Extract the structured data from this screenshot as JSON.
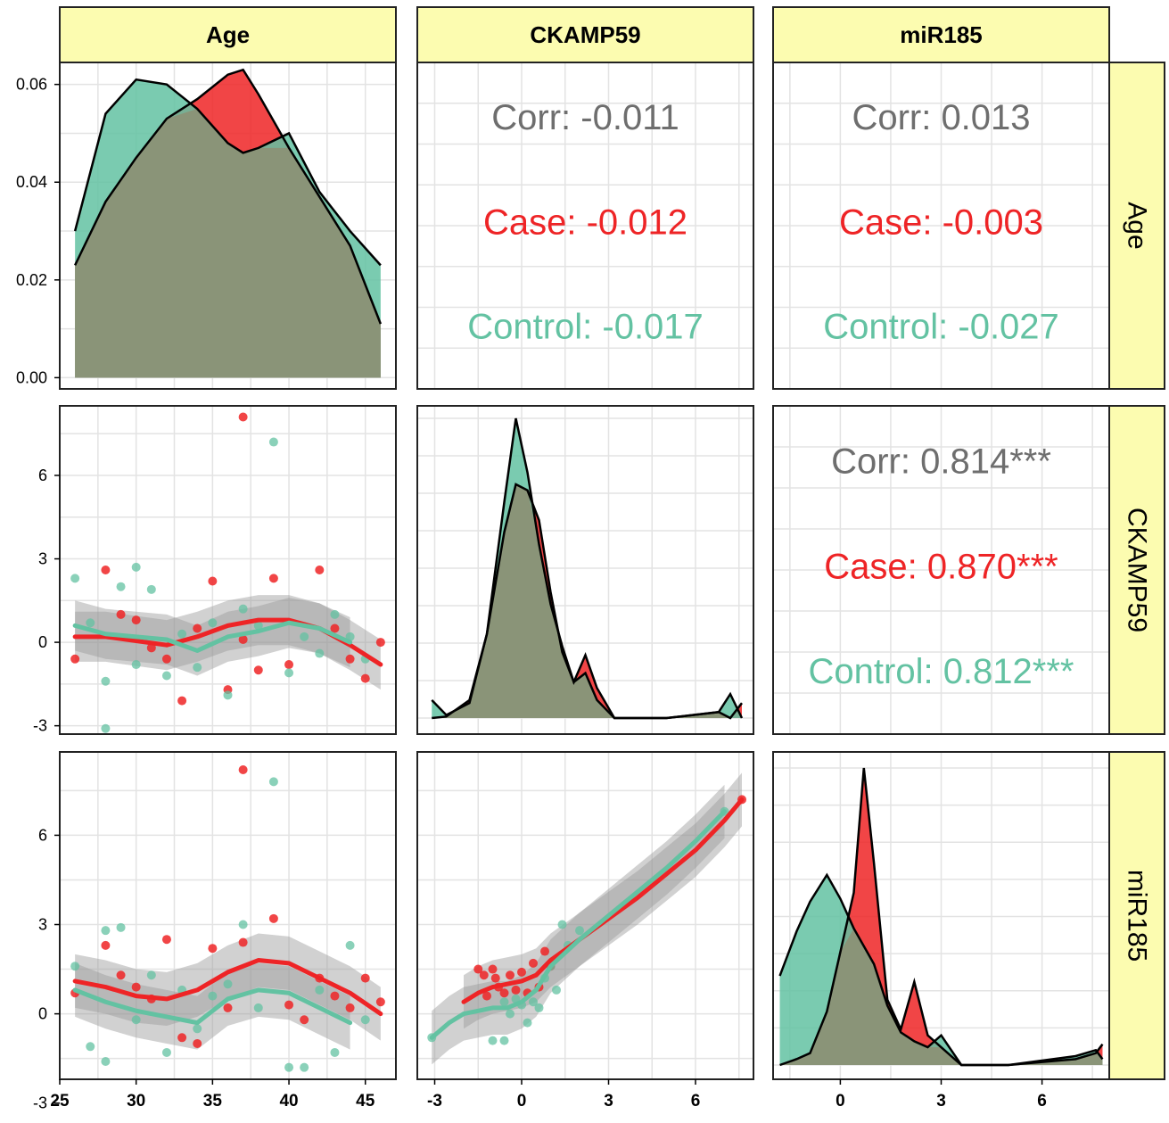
{
  "colors": {
    "case": "#ee2426",
    "control": "#63c2a2",
    "overall": "#6e6e6e",
    "strip_fill": "#fcfcb0",
    "overlap": "#8a9478",
    "smooth_ribbon": "#9a9a9a",
    "grid": "#e3e3e3",
    "panel_border": "#222222"
  },
  "chart_data": {
    "type": "pairs",
    "variables": [
      "Age",
      "CKAMP59",
      "miR185"
    ],
    "groups": [
      "Case",
      "Control"
    ],
    "grid": true,
    "axis_ticks": {
      "age_density_y": [
        "0.00",
        "0.02",
        "0.04",
        "0.06"
      ],
      "age_x": [
        "25",
        "30",
        "35",
        "40",
        "45"
      ],
      "ckamp59_y": [
        "-3",
        "0",
        "3",
        "6"
      ],
      "ckamp59_x": [
        "-3",
        "0",
        "3",
        "6"
      ],
      "mir185_y": [
        "-3",
        "0",
        "3",
        "6"
      ],
      "mir185_x": [
        "0",
        "3",
        "6"
      ]
    },
    "correlations": [
      {
        "panel": "Age vs CKAMP59",
        "overall": "Corr: -0.011",
        "case": "Case: -0.012",
        "control": "Control: -0.017"
      },
      {
        "panel": "Age vs miR185",
        "overall": "Corr: 0.013",
        "case": "Case: -0.003",
        "control": "Control: -0.027"
      },
      {
        "panel": "CKAMP59 vs miR185",
        "overall": "Corr: 0.814***",
        "case": "Case: 0.870***",
        "control": "Control: 0.812***"
      }
    ],
    "density_age": {
      "x": [
        26,
        28,
        30,
        32,
        34,
        36,
        37,
        38,
        40,
        42,
        44,
        46
      ],
      "case": [
        0.023,
        0.036,
        0.045,
        0.053,
        0.057,
        0.062,
        0.063,
        0.058,
        0.047,
        0.037,
        0.027,
        0.011
      ],
      "control": [
        0.03,
        0.054,
        0.061,
        0.06,
        0.055,
        0.048,
        0.046,
        0.047,
        0.05,
        0.038,
        0.03,
        0.023
      ]
    },
    "density_ckamp59": {
      "x": [
        -3.1,
        -2.6,
        -1.8,
        -1.2,
        -0.6,
        -0.2,
        0.2,
        0.6,
        1.0,
        1.4,
        1.8,
        2.2,
        2.6,
        3.2,
        5.0,
        6.8,
        7.2,
        7.6
      ],
      "case": [
        0.0,
        0.005,
        0.06,
        0.28,
        0.62,
        0.78,
        0.76,
        0.66,
        0.42,
        0.22,
        0.12,
        0.21,
        0.1,
        0.0,
        0.0,
        0.02,
        0.0,
        0.05
      ],
      "control": [
        0.06,
        0.01,
        0.05,
        0.28,
        0.72,
        1.0,
        0.82,
        0.58,
        0.38,
        0.24,
        0.12,
        0.15,
        0.06,
        0.0,
        0.0,
        0.02,
        0.08,
        0.0
      ]
    },
    "density_mir185": {
      "x": [
        -1.8,
        -1.3,
        -0.9,
        -0.4,
        0.0,
        0.4,
        0.7,
        1.0,
        1.4,
        1.8,
        2.2,
        2.6,
        3.0,
        3.6,
        5.0,
        7.0,
        7.6,
        7.8
      ],
      "case": [
        0.0,
        0.02,
        0.04,
        0.18,
        0.38,
        0.58,
        1.0,
        0.68,
        0.22,
        0.12,
        0.28,
        0.1,
        0.06,
        0.0,
        0.0,
        0.02,
        0.04,
        0.07
      ],
      "control": [
        0.3,
        0.45,
        0.55,
        0.64,
        0.56,
        0.46,
        0.4,
        0.34,
        0.2,
        0.11,
        0.08,
        0.06,
        0.1,
        0.0,
        0.0,
        0.03,
        0.05,
        0.02
      ]
    },
    "scatter_age_ckamp59": {
      "case": [
        [
          26,
          -0.6
        ],
        [
          28,
          2.6
        ],
        [
          29,
          1.0
        ],
        [
          30,
          0.8
        ],
        [
          31,
          -0.2
        ],
        [
          32,
          -0.6
        ],
        [
          33,
          -2.1
        ],
        [
          34,
          0.5
        ],
        [
          35,
          2.2
        ],
        [
          36,
          -1.7
        ],
        [
          37,
          8.1
        ],
        [
          38,
          -1.0
        ],
        [
          39,
          2.3
        ],
        [
          40,
          -0.8
        ],
        [
          42,
          2.6
        ],
        [
          43,
          0.5
        ],
        [
          44,
          -0.6
        ],
        [
          45,
          -1.3
        ],
        [
          46,
          0.0
        ],
        [
          37,
          0.1
        ]
      ],
      "control": [
        [
          26,
          2.3
        ],
        [
          27,
          0.7
        ],
        [
          28,
          -1.4
        ],
        [
          28,
          -3.1
        ],
        [
          29,
          2.0
        ],
        [
          30,
          2.7
        ],
        [
          30,
          -0.8
        ],
        [
          31,
          1.9
        ],
        [
          32,
          -1.2
        ],
        [
          33,
          0.3
        ],
        [
          34,
          -0.9
        ],
        [
          35,
          0.7
        ],
        [
          36,
          -1.9
        ],
        [
          37,
          1.2
        ],
        [
          38,
          0.6
        ],
        [
          39,
          7.2
        ],
        [
          40,
          -1.1
        ],
        [
          41,
          0.2
        ],
        [
          42,
          -0.4
        ],
        [
          43,
          1.0
        ],
        [
          44,
          0.2
        ],
        [
          45,
          -0.6
        ]
      ]
    },
    "scatter_age_mir185": {
      "case": [
        [
          26,
          0.7
        ],
        [
          28,
          2.3
        ],
        [
          29,
          1.3
        ],
        [
          30,
          0.9
        ],
        [
          31,
          0.5
        ],
        [
          32,
          2.5
        ],
        [
          33,
          -0.8
        ],
        [
          34,
          -1.0
        ],
        [
          35,
          2.2
        ],
        [
          36,
          0.2
        ],
        [
          37,
          8.2
        ],
        [
          37,
          2.4
        ],
        [
          39,
          3.2
        ],
        [
          40,
          0.3
        ],
        [
          41,
          -0.2
        ],
        [
          42,
          1.2
        ],
        [
          43,
          0.6
        ],
        [
          44,
          0.2
        ],
        [
          45,
          1.2
        ],
        [
          46,
          0.4
        ]
      ],
      "control": [
        [
          26,
          1.6
        ],
        [
          27,
          -1.1
        ],
        [
          28,
          -1.6
        ],
        [
          28,
          2.8
        ],
        [
          29,
          2.9
        ],
        [
          30,
          -0.2
        ],
        [
          31,
          1.3
        ],
        [
          32,
          -1.3
        ],
        [
          33,
          0.8
        ],
        [
          34,
          -0.5
        ],
        [
          35,
          0.6
        ],
        [
          36,
          1.0
        ],
        [
          37,
          3.0
        ],
        [
          38,
          0.2
        ],
        [
          39,
          7.8
        ],
        [
          40,
          -1.8
        ],
        [
          41,
          -1.8
        ],
        [
          42,
          0.8
        ],
        [
          43,
          -1.3
        ],
        [
          44,
          2.3
        ],
        [
          45,
          -0.2
        ]
      ]
    },
    "scatter_ckamp59_mir185": {
      "case": [
        [
          -1.5,
          1.5
        ],
        [
          -1.3,
          1.3
        ],
        [
          -1.2,
          0.6
        ],
        [
          -1.0,
          1.5
        ],
        [
          -0.8,
          0.9
        ],
        [
          -0.6,
          0.7
        ],
        [
          -0.4,
          1.3
        ],
        [
          -0.2,
          0.8
        ],
        [
          0.0,
          1.4
        ],
        [
          0.2,
          0.7
        ],
        [
          0.4,
          1.7
        ],
        [
          0.6,
          0.9
        ],
        [
          0.8,
          2.1
        ],
        [
          1.0,
          1.6
        ],
        [
          -0.9,
          1.2
        ],
        [
          7.6,
          7.2
        ]
      ],
      "control": [
        [
          -3.1,
          -0.8
        ],
        [
          -1.0,
          -0.9
        ],
        [
          -0.6,
          -0.9
        ],
        [
          -0.4,
          0.0
        ],
        [
          -0.2,
          0.5
        ],
        [
          0.0,
          0.3
        ],
        [
          0.2,
          -0.3
        ],
        [
          0.4,
          0.4
        ],
        [
          0.6,
          0.2
        ],
        [
          0.8,
          1.2
        ],
        [
          1.0,
          1.6
        ],
        [
          1.4,
          3.0
        ],
        [
          1.6,
          2.3
        ],
        [
          2.0,
          2.8
        ],
        [
          1.2,
          0.8
        ],
        [
          -0.6,
          0.4
        ],
        [
          7.0,
          6.8
        ]
      ]
    },
    "smooth": {
      "age_ckamp59_case": {
        "x": [
          26,
          28,
          30,
          32,
          34,
          36,
          38,
          40,
          42,
          44,
          46
        ],
        "y": [
          0.2,
          0.2,
          0.05,
          -0.1,
          0.2,
          0.6,
          0.8,
          0.8,
          0.5,
          -0.1,
          -0.8
        ]
      },
      "age_ckamp59_control": {
        "x": [
          26,
          28,
          30,
          32,
          34,
          36,
          38,
          40,
          42,
          44
        ],
        "y": [
          0.6,
          0.3,
          0.2,
          0.1,
          -0.3,
          0.2,
          0.4,
          0.7,
          0.5,
          0.0
        ]
      },
      "age_mir185_case": {
        "x": [
          26,
          28,
          30,
          32,
          34,
          36,
          38,
          40,
          42,
          44,
          46
        ],
        "y": [
          1.1,
          0.9,
          0.6,
          0.5,
          0.8,
          1.4,
          1.8,
          1.7,
          1.2,
          0.7,
          0.0
        ]
      },
      "age_mir185_control": {
        "x": [
          26,
          28,
          30,
          32,
          34,
          36,
          38,
          40,
          42,
          44
        ],
        "y": [
          0.8,
          0.4,
          0.1,
          -0.1,
          -0.3,
          0.5,
          0.8,
          0.7,
          0.2,
          -0.3
        ]
      },
      "ckamp59_mir185_case": {
        "x": [
          -2.0,
          -1.5,
          -1.0,
          -0.5,
          0.0,
          0.5,
          1.0,
          2.0,
          3.0,
          4.0,
          5.0,
          6.0,
          7.0,
          7.6
        ],
        "y": [
          0.4,
          0.7,
          0.9,
          1.0,
          1.1,
          1.3,
          1.8,
          2.5,
          3.2,
          3.9,
          4.7,
          5.5,
          6.5,
          7.2
        ]
      },
      "ckamp59_mir185_control": {
        "x": [
          -3.1,
          -2.5,
          -2.0,
          -1.5,
          -1.0,
          -0.5,
          0.0,
          0.5,
          1.0,
          2.0,
          3.0,
          4.0,
          5.0,
          6.0,
          7.0
        ],
        "y": [
          -0.8,
          -0.3,
          0.0,
          0.1,
          0.2,
          0.2,
          0.4,
          0.8,
          1.6,
          2.5,
          3.3,
          4.1,
          4.9,
          5.8,
          6.8
        ]
      }
    }
  }
}
